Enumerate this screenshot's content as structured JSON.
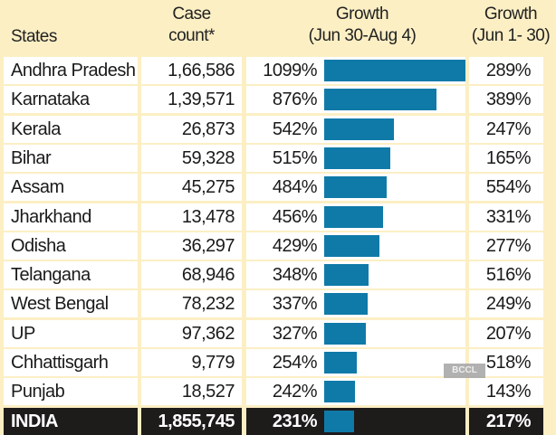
{
  "chart_data": {
    "type": "table",
    "columns": [
      "States",
      "Case count*",
      "Growth (Jun 30-Aug 4)",
      "Growth (Jun 1- 30)"
    ],
    "header": {
      "states": "States",
      "case_line1": "Case",
      "case_line2": "count*",
      "growth1_line1": "Growth",
      "growth1_line2": "(Jun 30-Aug 4)",
      "growth2_line1": "Growth",
      "growth2_line2": "(Jun 1- 30)"
    },
    "rows": [
      {
        "state": "Andhra Pradesh",
        "cases": "1,66,586",
        "growth_jun30_aug4": 1099,
        "growth_label": "1099%",
        "growth_jun": "289%"
      },
      {
        "state": "Karnataka",
        "cases": "1,39,571",
        "growth_jun30_aug4": 876,
        "growth_label": "876%",
        "growth_jun": "389%"
      },
      {
        "state": "Kerala",
        "cases": "26,873",
        "growth_jun30_aug4": 542,
        "growth_label": "542%",
        "growth_jun": "247%"
      },
      {
        "state": "Bihar",
        "cases": "59,328",
        "growth_jun30_aug4": 515,
        "growth_label": "515%",
        "growth_jun": "165%"
      },
      {
        "state": "Assam",
        "cases": "45,275",
        "growth_jun30_aug4": 484,
        "growth_label": "484%",
        "growth_jun": "554%"
      },
      {
        "state": "Jharkhand",
        "cases": "13,478",
        "growth_jun30_aug4": 456,
        "growth_label": "456%",
        "growth_jun": "331%"
      },
      {
        "state": "Odisha",
        "cases": "36,297",
        "growth_jun30_aug4": 429,
        "growth_label": "429%",
        "growth_jun": "277%"
      },
      {
        "state": "Telangana",
        "cases": "68,946",
        "growth_jun30_aug4": 348,
        "growth_label": "348%",
        "growth_jun": "516%"
      },
      {
        "state": "West Bengal",
        "cases": "78,232",
        "growth_jun30_aug4": 337,
        "growth_label": "337%",
        "growth_jun": "249%"
      },
      {
        "state": "UP",
        "cases": "97,362",
        "growth_jun30_aug4": 327,
        "growth_label": "327%",
        "growth_jun": "207%"
      },
      {
        "state": "Chhattisgarh",
        "cases": "9,779",
        "growth_jun30_aug4": 254,
        "growth_label": "254%",
        "growth_jun": "518%"
      },
      {
        "state": "Punjab",
        "cases": "18,527",
        "growth_jun30_aug4": 242,
        "growth_label": "242%",
        "growth_jun": "143%"
      }
    ],
    "total": {
      "state": "INDIA",
      "cases": "1,855,745",
      "growth_jun30_aug4": 231,
      "growth_label": "231%",
      "growth_jun": "217%"
    },
    "bar_color": "#0f7aa8",
    "bar_max": 1099
  },
  "watermark": "BCCL"
}
